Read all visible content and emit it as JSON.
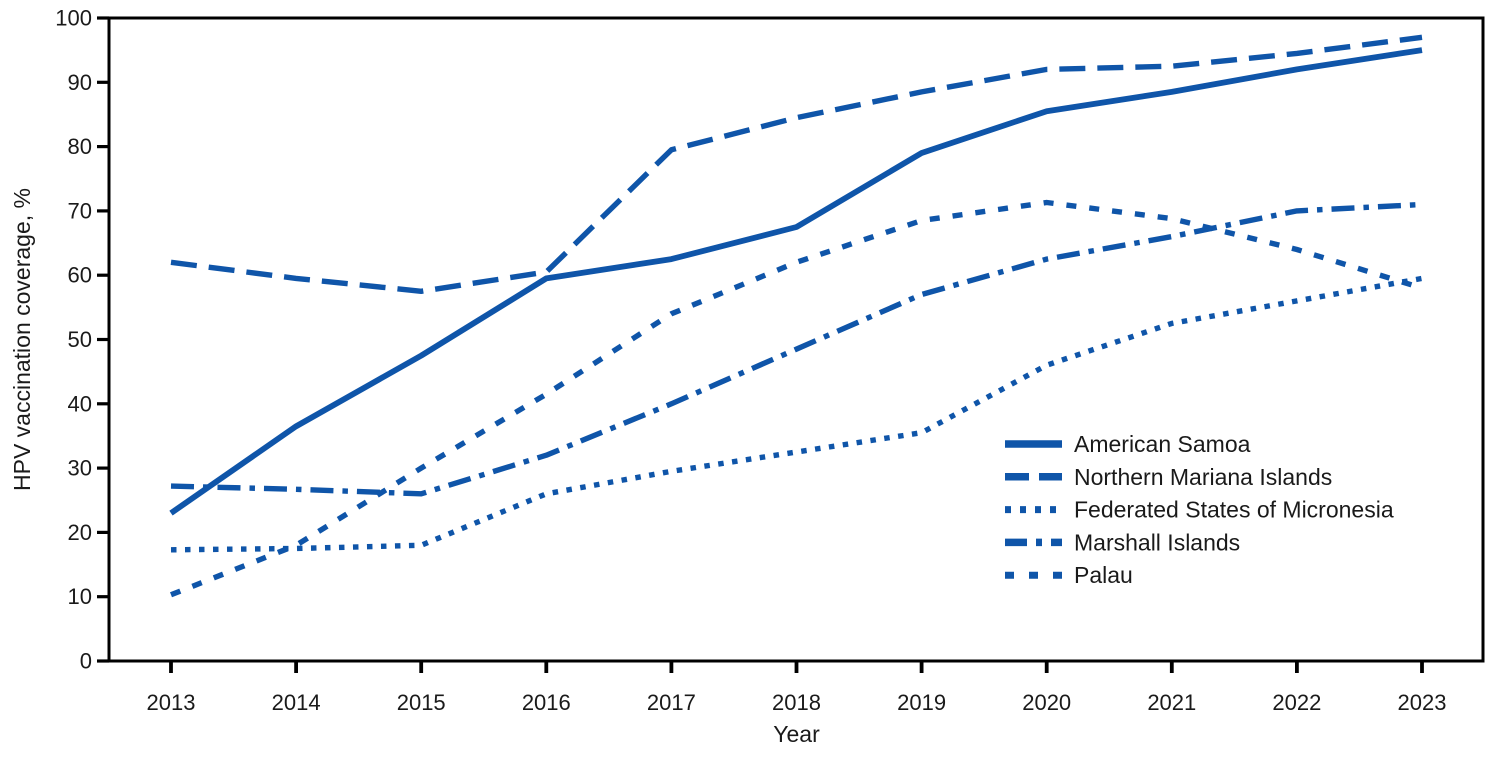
{
  "chart_data": {
    "type": "line",
    "title": "",
    "xlabel": "Year",
    "ylabel": "HPV vaccination coverage, %",
    "x": [
      2013,
      2014,
      2015,
      2016,
      2017,
      2018,
      2019,
      2020,
      2021,
      2022,
      2023
    ],
    "ylim": [
      0,
      100
    ],
    "ytick_step": 10,
    "grid": false,
    "frame": true,
    "legend_position": "inside-right-middle",
    "line_color": "#0f55a9",
    "axis_color": "#000000",
    "text_color": "#1a1a1a",
    "series": [
      {
        "name": "American Samoa",
        "style": "solid",
        "values": [
          23,
          36.5,
          47.5,
          59.5,
          62.5,
          67.5,
          79,
          85.5,
          88.5,
          92,
          95
        ]
      },
      {
        "name": "Northern Mariana Islands",
        "style": "long-dash",
        "values": [
          62,
          59.5,
          57.5,
          60.5,
          79.5,
          84.5,
          88.5,
          92,
          92.5,
          94.5,
          97
        ]
      },
      {
        "name": "Federated States of Micronesia",
        "style": "dot",
        "values": [
          17.3,
          17.5,
          18,
          26,
          29.5,
          32.5,
          35.5,
          46,
          52.5,
          56,
          59.5
        ]
      },
      {
        "name": "Marshall Islands",
        "style": "dash-dot",
        "values": [
          27.2,
          26.7,
          26,
          32,
          40,
          48.5,
          57,
          62.5,
          66,
          70,
          71
        ]
      },
      {
        "name": "Palau",
        "style": "short-dash",
        "values": [
          10.3,
          18,
          30,
          41.5,
          54,
          62,
          68.5,
          71.3,
          68.8,
          64,
          58
        ]
      }
    ],
    "ytick_labels": [
      "0",
      "10",
      "20",
      "30",
      "40",
      "50",
      "60",
      "70",
      "80",
      "90",
      "100"
    ],
    "xtick_labels": [
      "2013",
      "2014",
      "2015",
      "2016",
      "2017",
      "2018",
      "2019",
      "2020",
      "2021",
      "2022",
      "2023"
    ]
  }
}
